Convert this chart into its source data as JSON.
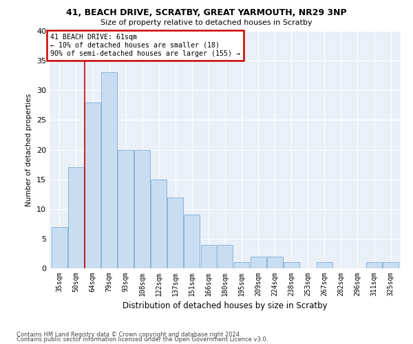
{
  "title1": "41, BEACH DRIVE, SCRATBY, GREAT YARMOUTH, NR29 3NP",
  "title2": "Size of property relative to detached houses in Scratby",
  "xlabel": "Distribution of detached houses by size in Scratby",
  "ylabel": "Number of detached properties",
  "categories": [
    "35sqm",
    "50sqm",
    "64sqm",
    "79sqm",
    "93sqm",
    "108sqm",
    "122sqm",
    "137sqm",
    "151sqm",
    "166sqm",
    "180sqm",
    "195sqm",
    "209sqm",
    "224sqm",
    "238sqm",
    "253sqm",
    "267sqm",
    "282sqm",
    "296sqm",
    "311sqm",
    "325sqm"
  ],
  "values": [
    7,
    17,
    28,
    33,
    20,
    20,
    15,
    12,
    9,
    4,
    4,
    1,
    2,
    2,
    1,
    0,
    1,
    0,
    0,
    1,
    1
  ],
  "bar_color": "#c9ddf2",
  "bar_edge_color": "#8ab4d8",
  "property_line_index": 2,
  "annotation_line1": "41 BEACH DRIVE: 61sqm",
  "annotation_line2": "← 10% of detached houses are smaller (18)",
  "annotation_line3": "90% of semi-detached houses are larger (155) →",
  "ylim": [
    0,
    40
  ],
  "yticks": [
    0,
    5,
    10,
    15,
    20,
    25,
    30,
    35,
    40
  ],
  "footer1": "Contains HM Land Registry data © Crown copyright and database right 2024.",
  "footer2": "Contains public sector information licensed under the Open Government Licence v3.0.",
  "bg_color": "#eaf0f8",
  "grid_color": "#ffffff"
}
